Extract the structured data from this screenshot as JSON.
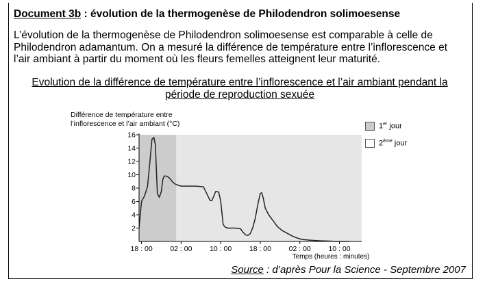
{
  "document": {
    "title_label": "Document 3b",
    "title_rest": " : évolution de la thermogenèse de Philodendron solimoesense",
    "paragraph_lines": [
      "L’évolution de la thermogenèse de Philodendron solimoesense est comparable à celle de",
      "Philodendron adamantum. On a mesuré la différence de température entre l’inflorescence et",
      "l’air ambiant à partir du moment où les fleurs femelles atteignent leur maturité."
    ],
    "source_label": "Source",
    "source_rest": " : d’après Pour la Science - Septembre 2007"
  },
  "chart_data": {
    "type": "line",
    "title_lines": [
      "Evolution de la différence de température entre l’inflorescence et l’air ambiant pendant la",
      "période de reproduction sexuée"
    ],
    "ylabel_lines": [
      "Différence de température entre",
      "l’inflorescence et l’air ambiant (°C)"
    ],
    "xlabel": "Temps (heures : minutes)",
    "ylim": [
      0,
      16
    ],
    "y_ticks": [
      2,
      4,
      6,
      8,
      10,
      12,
      14,
      16
    ],
    "x_tick_labels": [
      "18 : 00",
      "02 : 00",
      "10 : 00",
      "18 : 00",
      "02 : 00",
      "10 : 00"
    ],
    "x_unit": "hours since first 18:00",
    "x_ticks": [
      0,
      8,
      16,
      24,
      32,
      40
    ],
    "xlim": [
      -0.5,
      44.5
    ],
    "day1_range": [
      -0.5,
      7
    ],
    "legend": [
      {
        "label": "1",
        "sup": "er",
        "rest": " jour",
        "color": "#cccccc"
      },
      {
        "label": "2",
        "sup": "ème",
        "rest": " jour",
        "color": "#ffffff"
      }
    ],
    "day2_color": "#e6e6e6",
    "line_color": "#222222",
    "series": [
      {
        "x": [
          -0.5,
          0,
          0.6,
          1.2,
          1.7,
          2.1,
          2.5,
          2.8,
          3.2,
          3.6,
          4.0,
          4.3,
          4.6,
          5.0,
          5.5,
          6.0,
          6.3,
          6.8,
          7.5,
          8.0,
          9.0,
          10.0,
          11.0,
          12.5,
          13.3,
          13.8,
          14.2,
          14.6,
          15.0,
          15.6,
          16.0,
          16.5,
          17.0,
          17.5,
          18.0,
          19.0,
          20.0,
          20.5,
          21.0,
          21.5,
          22.0,
          22.5,
          23.0,
          23.5,
          24.0,
          24.3,
          24.6,
          25.0,
          25.7,
          26.5,
          27.5,
          28.5,
          29.5,
          30.5,
          31.5,
          32.5,
          34.0,
          36.0,
          38.0,
          40.0,
          42.0
        ],
        "y": [
          2.0,
          6.0,
          6.8,
          8.2,
          12.0,
          15.3,
          15.6,
          14.5,
          7.2,
          6.6,
          7.5,
          9.3,
          9.8,
          9.8,
          9.6,
          9.2,
          8.9,
          8.6,
          8.4,
          8.3,
          8.3,
          8.3,
          8.3,
          8.2,
          7.0,
          6.2,
          6.1,
          6.8,
          7.5,
          7.4,
          6.0,
          2.5,
          2.1,
          2.0,
          2.0,
          2.0,
          1.9,
          1.4,
          1.0,
          0.9,
          1.2,
          2.1,
          3.5,
          5.5,
          7.2,
          7.3,
          6.5,
          5.0,
          4.0,
          3.2,
          2.2,
          1.6,
          1.2,
          0.8,
          0.5,
          0.3,
          0.2,
          0.1,
          0.05,
          0.0,
          0.0
        ]
      }
    ]
  }
}
